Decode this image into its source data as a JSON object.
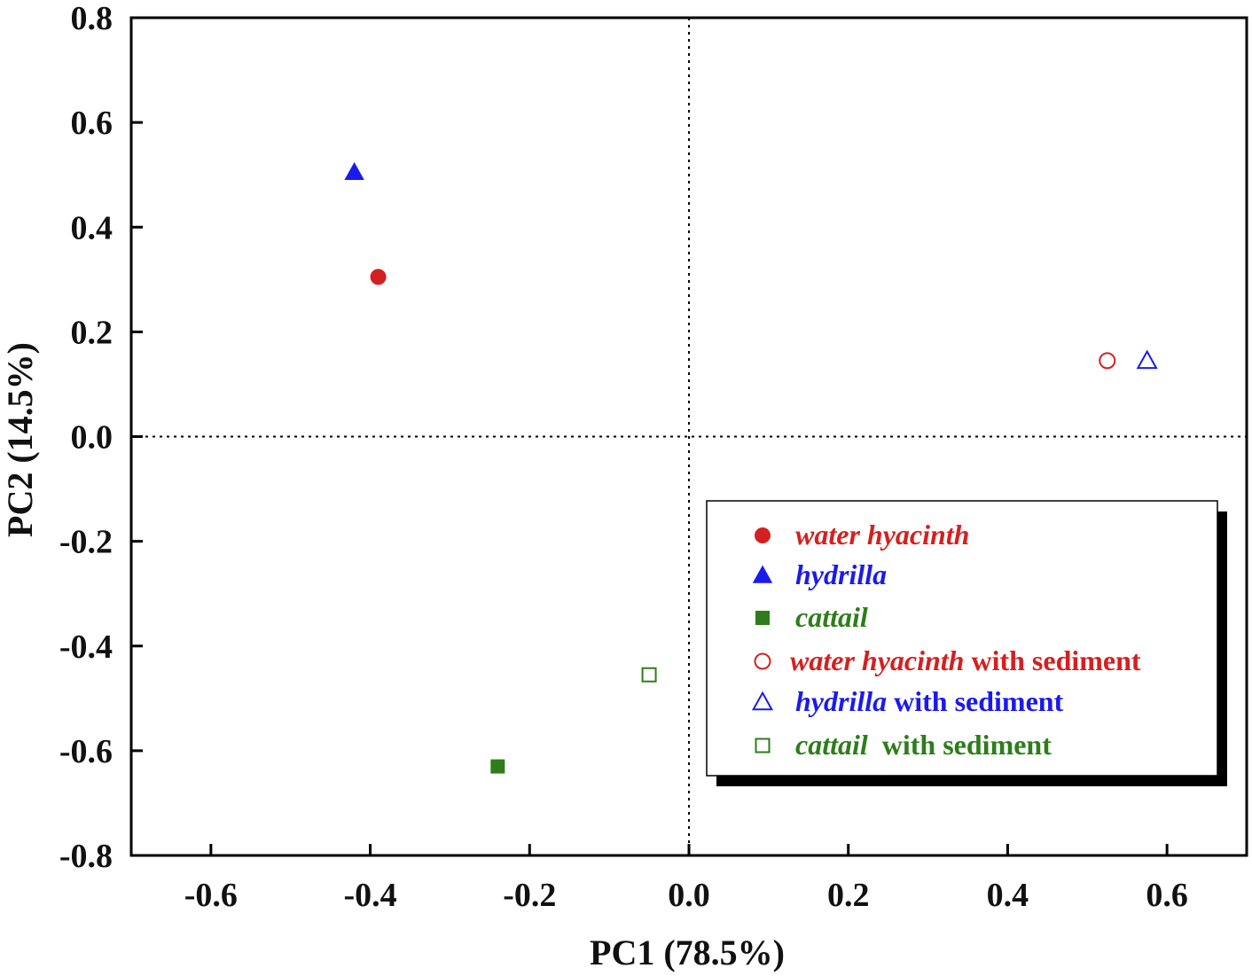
{
  "chart_data": {
    "type": "scatter",
    "title": "",
    "xlabel": "PC1  (78.5%)",
    "ylabel": "PC2 (14.5%)",
    "xlim": [
      -0.7,
      0.7
    ],
    "ylim": [
      -0.8,
      0.8
    ],
    "x_ticks": [
      -0.6,
      -0.4,
      -0.2,
      0.0,
      0.2,
      0.4,
      0.6
    ],
    "x_tick_labels": [
      "-0.6",
      "-0.4",
      "-0.2",
      "0.0",
      "0.2",
      "0.4",
      "0.6"
    ],
    "y_ticks": [
      0.8,
      0.6,
      0.4,
      0.2,
      0.0,
      -0.2,
      -0.4,
      -0.6,
      -0.8
    ],
    "y_tick_labels": [
      "0.8",
      "0.6",
      "0.4",
      "0.2",
      "0.0",
      "-0.2",
      "-0.4",
      "-0.6",
      "-0.8"
    ],
    "reference_lines": {
      "x": 0.0,
      "y": 0.0,
      "style": "dotted"
    },
    "legend_position": "lower-right",
    "series": [
      {
        "name": "water hyacinth",
        "italic_part": "water hyacinth",
        "rest": "",
        "marker": "circle",
        "filled": true,
        "color": "#d42020",
        "x": -0.39,
        "y": 0.305
      },
      {
        "name": "hydrilla",
        "italic_part": "hydrilla",
        "rest": "",
        "marker": "triangle",
        "filled": true,
        "color": "#1a1aee",
        "x": -0.42,
        "y": 0.505
      },
      {
        "name": "cattail",
        "italic_part": "cattail",
        "rest": "",
        "marker": "square",
        "filled": true,
        "color": "#2e7d1a",
        "x": -0.24,
        "y": -0.63
      },
      {
        "name": "water hyacinth with sediment",
        "italic_part": "water hyacinth",
        "rest": " with sediment",
        "marker": "circle",
        "filled": false,
        "color": "#d42020",
        "x": 0.525,
        "y": 0.145
      },
      {
        "name": "hydrilla with sediment",
        "italic_part": "hydrilla",
        "rest": " with sediment",
        "marker": "triangle",
        "filled": false,
        "color": "#1a1aee",
        "x": 0.575,
        "y": 0.145
      },
      {
        "name": "cattail  with sediment",
        "italic_part": "cattail",
        "rest": "  with sediment",
        "marker": "square",
        "filled": false,
        "color": "#2e7d1a",
        "x": -0.05,
        "y": -0.455
      }
    ]
  }
}
